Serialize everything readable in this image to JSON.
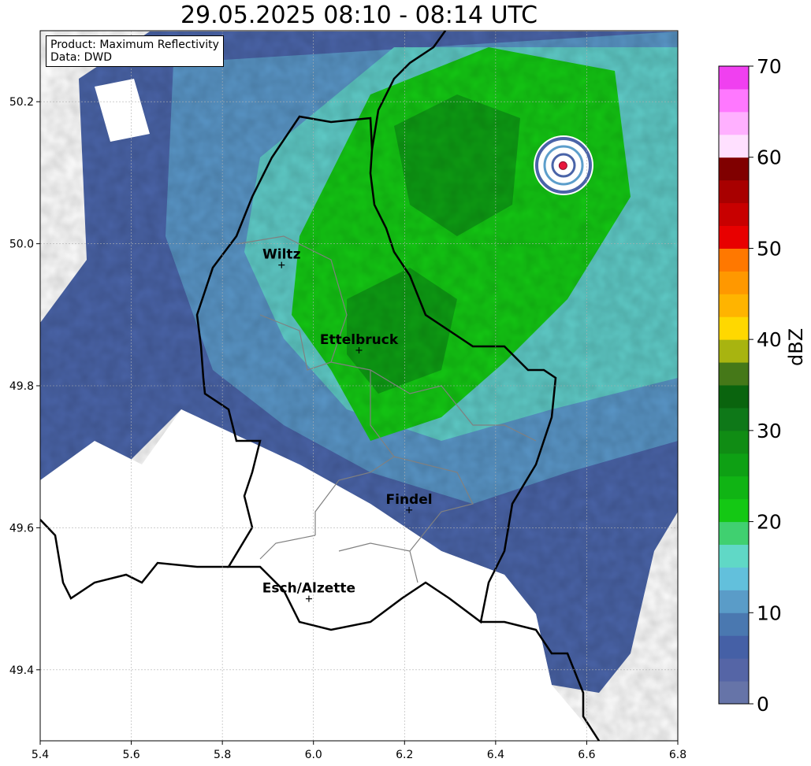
{
  "title": "29.05.2025 08:10 - 08:14 UTC",
  "info_box": {
    "product": "Product: Maximum Reflectivity",
    "data": "Data: DWD"
  },
  "map": {
    "lon_range": [
      5.4,
      6.8
    ],
    "lat_range": [
      49.3,
      50.3
    ],
    "x_ticks": [
      "5.4",
      "5.6",
      "5.8",
      "6.0",
      "6.2",
      "6.4",
      "6.6",
      "6.8"
    ],
    "y_ticks": [
      "49.4",
      "49.6",
      "49.8",
      "50.0",
      "50.2"
    ],
    "grid": true,
    "radar_site": {
      "lon": 6.548,
      "lat": 50.11,
      "color": "#e8163c"
    },
    "cities": [
      {
        "name": "Wiltz",
        "lon": 5.93,
        "lat": 49.97
      },
      {
        "name": "Ettelbruck",
        "lon": 6.1,
        "lat": 49.85
      },
      {
        "name": "Findel",
        "lon": 6.21,
        "lat": 49.625
      },
      {
        "name": "Esch/Alzette",
        "lon": 5.99,
        "lat": 49.5
      }
    ]
  },
  "colorbar": {
    "label": "dBZ",
    "min": 0,
    "max": 70,
    "tick_labels": [
      "0",
      "10",
      "20",
      "30",
      "40",
      "50",
      "60",
      "70"
    ],
    "colors": [
      "#6674a8",
      "#5565a6",
      "#4560a6",
      "#4a78b0",
      "#5a9cc8",
      "#62c0dc",
      "#60d8c6",
      "#40d070",
      "#14c814",
      "#10b414",
      "#0ea014",
      "#108c14",
      "#0e7818",
      "#0a640e",
      "#457818",
      "#a8b410",
      "#ffd800",
      "#ffb400",
      "#ff9800",
      "#ff7800",
      "#e80000",
      "#c80000",
      "#a80000",
      "#800000",
      "#ffe0ff",
      "#ffb0ff",
      "#ff78ff",
      "#f040f0"
    ]
  }
}
